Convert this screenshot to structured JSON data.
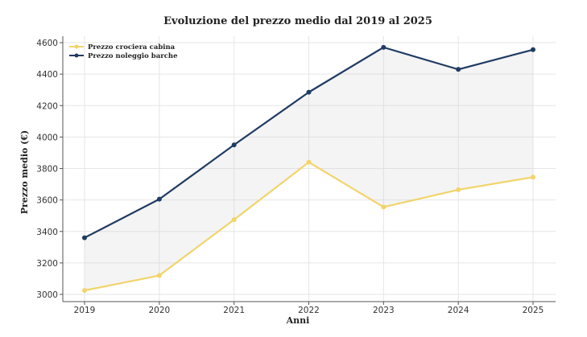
{
  "chart_data": {
    "type": "line",
    "title": "Evoluzione del prezzo medio dal 2019 al 2025",
    "xlabel": "Anni",
    "ylabel": "Prezzo medio (€)",
    "categories": [
      "2019",
      "2020",
      "2021",
      "2022",
      "2023",
      "2024",
      "2025"
    ],
    "ylim": [
      3000,
      4600
    ],
    "yticks": [
      3000,
      3200,
      3400,
      3600,
      3800,
      4000,
      4200,
      4400,
      4600
    ],
    "grid": true,
    "legend_position": "top-left",
    "fill_between": true,
    "series": [
      {
        "name": "Prezzo crociera cabina",
        "color": "#f2d46b",
        "values": [
          3025,
          3120,
          3475,
          3840,
          3555,
          3665,
          3745
        ]
      },
      {
        "name": "Prezzo noleggio barche",
        "color": "#1f3b63",
        "values": [
          3360,
          3605,
          3950,
          4285,
          4570,
          4430,
          4555
        ]
      }
    ]
  }
}
